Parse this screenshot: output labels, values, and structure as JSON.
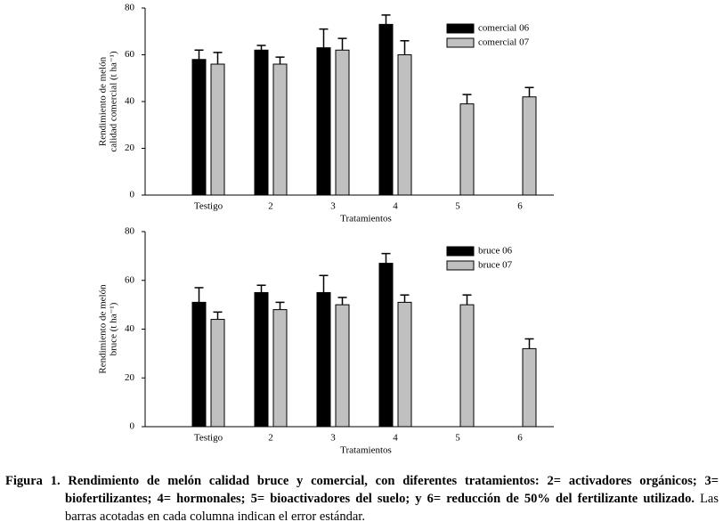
{
  "chart_data": [
    {
      "type": "bar",
      "ylabel": [
        "Rendimiento de melón",
        "calidad comercial (t ha⁻¹)"
      ],
      "xlabel": "Tratamientos",
      "categories": [
        "Testigo",
        "2",
        "3",
        "4",
        "5",
        "6"
      ],
      "series": [
        {
          "name": "comercial 06",
          "color": "#000000",
          "values": [
            58,
            62,
            63,
            73,
            null,
            null
          ],
          "errors": [
            4,
            2,
            8,
            4,
            null,
            null
          ]
        },
        {
          "name": "comercial 07",
          "color": "#c0c0c0",
          "values": [
            56,
            56,
            62,
            60,
            39,
            42
          ],
          "errors": [
            5,
            3,
            5,
            6,
            4,
            4
          ]
        }
      ],
      "ylim": [
        0,
        80
      ],
      "yticks": [
        0,
        20,
        40,
        60,
        80
      ],
      "legend": "upper-right"
    },
    {
      "type": "bar",
      "ylabel": [
        "Rendimiento de melón",
        "bruce (t ha⁻¹)"
      ],
      "xlabel": "Tratamientos",
      "categories": [
        "Testigo",
        "2",
        "3",
        "4",
        "5",
        "6"
      ],
      "series": [
        {
          "name": "bruce 06",
          "color": "#000000",
          "values": [
            51,
            55,
            55,
            67,
            null,
            null
          ],
          "errors": [
            6,
            3,
            7,
            4,
            null,
            null
          ]
        },
        {
          "name": "bruce 07",
          "color": "#c0c0c0",
          "values": [
            44,
            48,
            50,
            51,
            50,
            32
          ],
          "errors": [
            3,
            3,
            3,
            3,
            4,
            4
          ]
        }
      ],
      "ylim": [
        0,
        80
      ],
      "yticks": [
        0,
        20,
        40,
        60,
        80
      ],
      "legend": "upper-right"
    }
  ],
  "caption": {
    "bold": "Figura 1. Rendimiento de melón calidad bruce y comercial, con diferentes tratamientos: 2= activadores orgánicos; 3= biofertilizantes; 4= hormonales; 5= bioactivadores del suelo; y 6= reducción de 50% del fertilizante utilizado.",
    "normal": "Las barras acotadas en cada columna indican el error estándar."
  }
}
